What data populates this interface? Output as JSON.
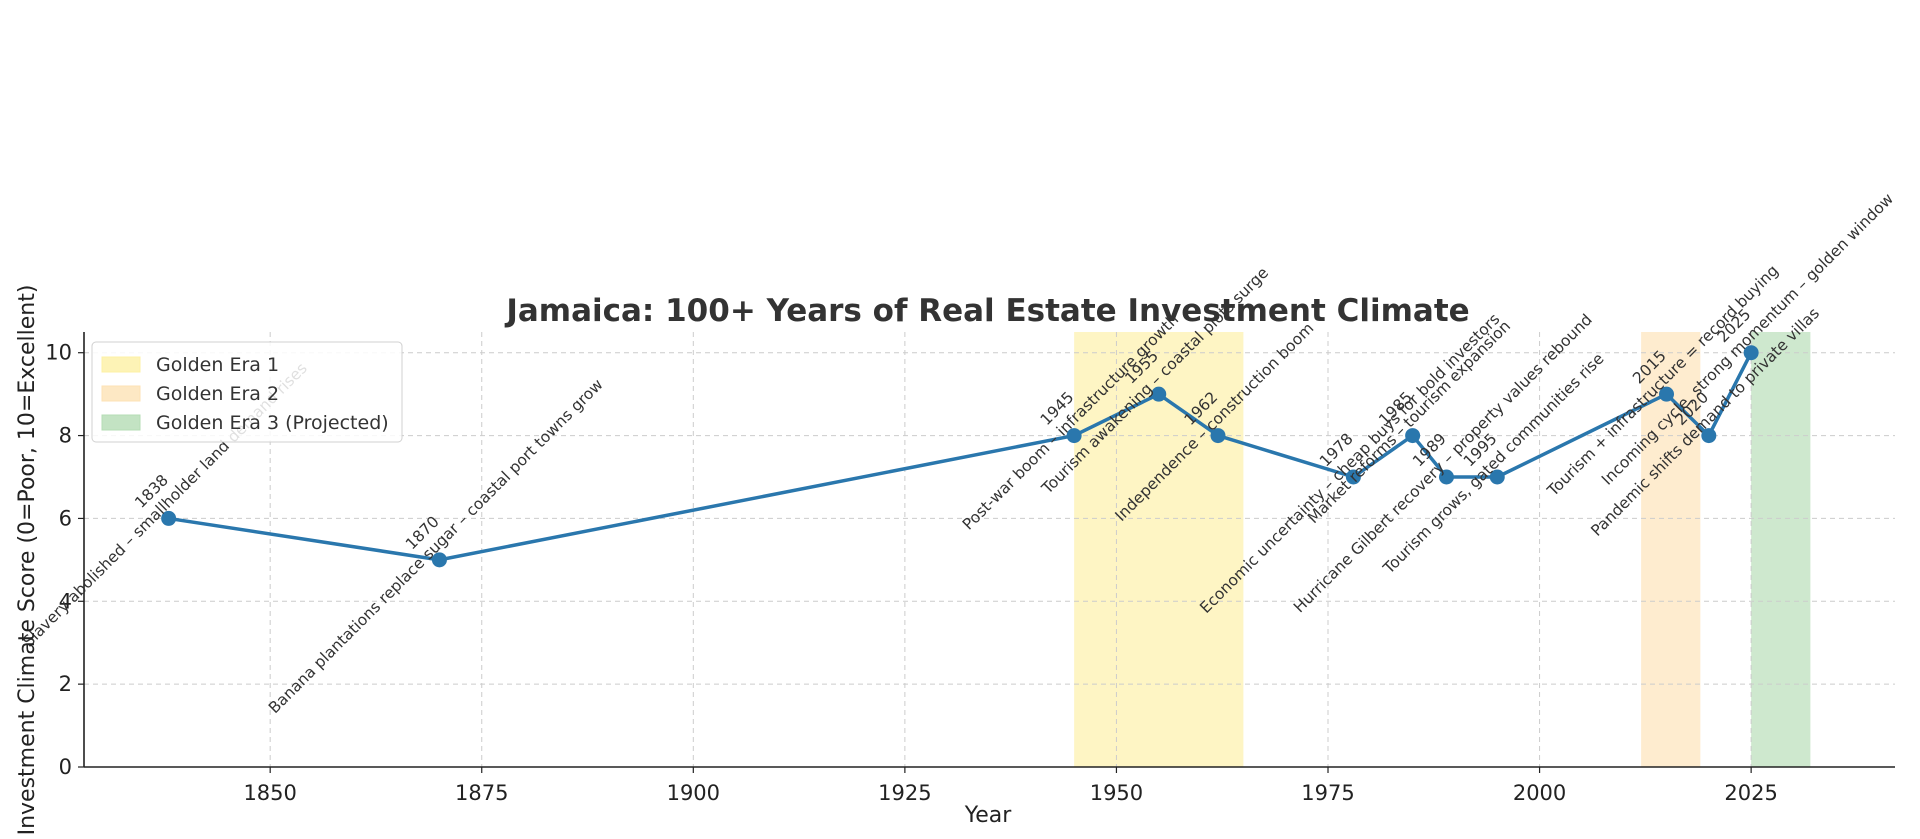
{
  "chart_data": {
    "type": "line",
    "title": "Jamaica: 100+ Years of Real Estate Investment Climate",
    "xlabel": "Year",
    "ylabel": "Investment Climate Score (0=Poor, 10=Excellent)",
    "xlim": [
      1828,
      2042
    ],
    "ylim": [
      0,
      10.5
    ],
    "xticks": [
      1850,
      1875,
      1900,
      1925,
      1950,
      1975,
      2000,
      2025
    ],
    "yticks": [
      0,
      2,
      4,
      6,
      8,
      10
    ],
    "grid": true,
    "legend_position": "upper-left",
    "line_color": "#2a77ad",
    "series": [
      {
        "x": [
          1838,
          1870,
          1945,
          1955,
          1962,
          1978,
          1985,
          1989,
          1995,
          2015,
          2020,
          2025
        ],
        "values": [
          6,
          5,
          8,
          9,
          8,
          7,
          8,
          7,
          7,
          9,
          8,
          10
        ]
      }
    ],
    "annotations": [
      {
        "year": 1838,
        "score": 6,
        "label": "1838\nSlavery abolished – smallholder land demand rises"
      },
      {
        "year": 1870,
        "score": 5,
        "label": "1870\nBanana plantations replace sugar – coastal port towns grow"
      },
      {
        "year": 1945,
        "score": 8,
        "label": "1945\nPost-war boom – infrastructure growth"
      },
      {
        "year": 1955,
        "score": 9,
        "label": "1955\nTourism awakening – coastal plots surge"
      },
      {
        "year": 1962,
        "score": 8,
        "label": "1962\nIndependence – construction boom"
      },
      {
        "year": 1978,
        "score": 7,
        "label": "1978\nEconomic uncertainty – cheap buys for bold investors"
      },
      {
        "year": 1985,
        "score": 8,
        "label": "1985\nMarket reforms – tourism expansion"
      },
      {
        "year": 1989,
        "score": 7,
        "label": "1989\nHurricane Gilbert recovery – property values rebound"
      },
      {
        "year": 1995,
        "score": 7,
        "label": "1995\nTourism grows, gated communities rise"
      },
      {
        "year": 2015,
        "score": 9,
        "label": "2015\nTourism + infrastructure = record buying"
      },
      {
        "year": 2020,
        "score": 8,
        "label": "2020\nPandemic shifts demand to private villas"
      },
      {
        "year": 2025,
        "score": 10,
        "label": "2025\nIncoming cycle, strong momentum – golden window"
      }
    ],
    "shaded_regions": [
      {
        "name": "Golden Era 1",
        "start": 1945,
        "end": 1965,
        "color": "#fdf0a4"
      },
      {
        "name": "Golden Era 2",
        "start": 2012,
        "end": 2019,
        "color": "#fde2b5"
      },
      {
        "name": "Golden Era 3 (Projected)",
        "start": 2025,
        "end": 2032,
        "color": "#b4dcb4"
      }
    ]
  }
}
